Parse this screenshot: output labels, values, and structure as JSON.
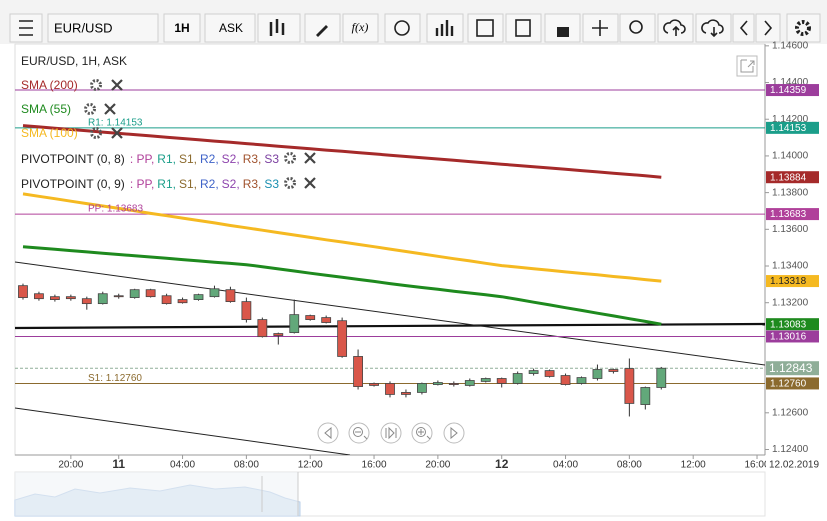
{
  "toolbar": {
    "symbol": "EUR/USD",
    "timeframe": "1H",
    "price_type": "ASK",
    "function_button": "f(x)"
  },
  "chart_data": {
    "type": "candlestick",
    "title": "EUR/USD, 1H, ASK",
    "categories": [
      null,
      null,
      null,
      "20:00",
      null,
      null,
      "11",
      null,
      null,
      null,
      "04:00",
      null,
      null,
      null,
      "08:00",
      null,
      null,
      null,
      "12:00",
      null,
      null,
      null,
      "16:00",
      null,
      null,
      null,
      "20:00",
      null,
      null,
      null,
      "12",
      null,
      null,
      null,
      "04:00",
      null,
      null,
      null,
      "08:00",
      null,
      null,
      null,
      "12:00",
      null,
      null,
      null,
      "16:00"
    ],
    "open": [
      1.13293,
      1.13249,
      1.13233,
      1.13233,
      1.13222,
      1.13195,
      1.13238,
      1.13228,
      1.13271,
      1.13238,
      1.13217,
      1.13217,
      1.13233,
      1.13271,
      1.13206,
      1.13108,
      1.13032,
      1.13037,
      1.1313,
      1.13119,
      1.13102,
      1.12907,
      1.1276,
      1.1276,
      1.12711,
      1.12711,
      1.12754,
      1.1276,
      1.12749,
      1.12771,
      1.12787,
      1.1276,
      1.12814,
      1.1283,
      1.12803,
      1.1276,
      1.12787,
      1.12836,
      1.12841,
      1.12645,
      1.12738,
      null,
      null,
      null,
      null,
      null,
      null
    ],
    "high": [
      1.13304,
      1.1326,
      1.13244,
      1.13244,
      1.13233,
      1.1326,
      1.13249,
      1.13276,
      1.13276,
      1.13249,
      1.13228,
      1.13249,
      1.13293,
      1.13287,
      1.13228,
      1.13119,
      1.13037,
      1.13217,
      1.13135,
      1.1313,
      1.13119,
      1.12945,
      1.12765,
      1.12771,
      1.12727,
      1.12765,
      1.12776,
      1.12771,
      1.12787,
      1.12792,
      1.12792,
      1.12825,
      1.12841,
      1.12836,
      1.12814,
      1.12798,
      1.12863,
      1.12841,
      1.12896,
      1.12743,
      1.1285,
      null,
      null,
      null,
      null,
      null,
      null
    ],
    "low": [
      1.13217,
      1.13211,
      1.13206,
      1.13211,
      1.13162,
      1.1319,
      1.13222,
      1.13222,
      1.13228,
      1.1319,
      1.13195,
      1.13211,
      1.13228,
      1.132,
      1.13092,
      1.1301,
      1.12972,
      1.13032,
      1.13102,
      1.13087,
      1.129,
      1.12727,
      1.12743,
      1.12684,
      1.12684,
      1.127,
      1.12749,
      1.12743,
      1.12743,
      1.12765,
      1.12738,
      1.12754,
      1.12803,
      1.12792,
      1.12749,
      1.12754,
      1.12776,
      1.12814,
      1.1258,
      1.12618,
      1.12727,
      null,
      null,
      null,
      null,
      null,
      null
    ],
    "close": [
      1.13228,
      1.13222,
      1.13217,
      1.13222,
      1.13195,
      1.13249,
      1.13233,
      1.13271,
      1.13233,
      1.13195,
      1.132,
      1.13244,
      1.13276,
      1.13206,
      1.13108,
      1.13015,
      1.13021,
      1.13135,
      1.13108,
      1.13092,
      1.12907,
      1.12743,
      1.12749,
      1.127,
      1.127,
      1.1276,
      1.12765,
      1.12754,
      1.12776,
      1.12787,
      1.1276,
      1.12814,
      1.1283,
      1.12798,
      1.12754,
      1.12792,
      1.12836,
      1.12825,
      1.12651,
      1.12738,
      1.12843,
      null,
      null,
      null,
      null,
      null,
      null
    ],
    "up_color": "#62a87a",
    "down_color": "#d9574a",
    "series": [
      {
        "name": "SMA (200)",
        "color": "#a52a2a",
        "tag": "1.13884",
        "values": [
          1.14165,
          1.14158,
          1.14151,
          1.14144,
          1.14137,
          1.1413,
          1.14123,
          1.14116,
          1.14109,
          1.14102,
          1.14095,
          1.14088,
          1.14081,
          1.14074,
          1.14067,
          1.1406,
          1.14053,
          1.14046,
          1.14039,
          1.14032,
          1.14025,
          1.14018,
          1.14011,
          1.14004,
          1.13997,
          1.1399,
          1.13983,
          1.13976,
          1.13969,
          1.13962,
          1.13955,
          1.13948,
          1.13941,
          1.13934,
          1.13927,
          1.1392,
          1.13913,
          1.13906,
          1.13899,
          1.13892,
          1.13884,
          null,
          null,
          null,
          null,
          null,
          null
        ]
      },
      {
        "name": "SMA (55)",
        "color": "#1e8a1e",
        "tag": "1.13083",
        "values": [
          1.13505,
          1.13498,
          1.13491,
          1.13484,
          1.13477,
          1.1347,
          1.13463,
          1.13456,
          1.13449,
          1.13442,
          1.13435,
          1.13428,
          1.13421,
          1.13414,
          1.13407,
          1.13396,
          1.13384,
          1.13373,
          1.13361,
          1.1335,
          1.13339,
          1.13327,
          1.13316,
          1.13304,
          1.13293,
          1.13283,
          1.13273,
          1.13263,
          1.13253,
          1.13243,
          1.13233,
          1.13218,
          1.13203,
          1.13188,
          1.13173,
          1.13158,
          1.13143,
          1.13128,
          1.13113,
          1.13098,
          1.13083,
          null,
          null,
          null,
          null,
          null,
          null
        ]
      },
      {
        "name": "SMA (100)",
        "color": "#f5b921",
        "tag": "1.13318",
        "values": [
          1.13793,
          1.1378,
          1.13767,
          1.13753,
          1.1374,
          1.13727,
          1.13714,
          1.13701,
          1.13687,
          1.13674,
          1.13661,
          1.13648,
          1.13635,
          1.13621,
          1.13608,
          1.13595,
          1.13582,
          1.13569,
          1.13556,
          1.13543,
          1.13531,
          1.13518,
          1.13505,
          1.13492,
          1.13479,
          1.13466,
          1.13453,
          1.1344,
          1.13428,
          1.13415,
          1.13402,
          1.13394,
          1.13385,
          1.13377,
          1.13368,
          1.1336,
          1.13352,
          1.13343,
          1.13335,
          1.13326,
          1.13318,
          null,
          null,
          null,
          null,
          null,
          null
        ]
      }
    ],
    "levels": [
      {
        "value": 1.14359,
        "color": "#9c3d9c",
        "tag": "1.14359"
      },
      {
        "value": 1.14153,
        "color": "#1b9e8a",
        "tag": "1.14153",
        "label": "R1: 1.14153"
      },
      {
        "value": 1.13683,
        "color": "#b0409a",
        "tag": "1.13683",
        "label": "PP: 1.13683"
      },
      {
        "value": 1.13016,
        "color": "#9c3d9c",
        "tag": "1.13016"
      },
      {
        "value": 1.1276,
        "color": "#8b6a2e",
        "tag": "1.12760",
        "label": "S1: 1.12760"
      }
    ],
    "last_price": {
      "value": 1.12843,
      "label": "1.12843",
      "color": "#8fae98"
    },
    "pivot_legend": [
      {
        "name": "PIVOTPOINT (0, 8)",
        "items": [
          {
            "text": ": PP,",
            "color": "#b0409a"
          },
          {
            "text": "R1,",
            "color": "#1b9e8a"
          },
          {
            "text": "S1,",
            "color": "#8b6a2e"
          },
          {
            "text": "R2,",
            "color": "#3f63c8"
          },
          {
            "text": "S2,",
            "color": "#8e44ad"
          },
          {
            "text": "R3,",
            "color": "#a0522d"
          },
          {
            "text": "S3",
            "color": "#7b3fa0"
          }
        ]
      },
      {
        "name": "PIVOTPOINT (0, 9)",
        "items": [
          {
            "text": ": PP,",
            "color": "#b0409a"
          },
          {
            "text": "R1,",
            "color": "#1b9e8a"
          },
          {
            "text": "S1,",
            "color": "#8b6a2e"
          },
          {
            "text": "R2,",
            "color": "#3f63c8"
          },
          {
            "text": "S2,",
            "color": "#8e44ad"
          },
          {
            "text": "R3,",
            "color": "#a0522d"
          },
          {
            "text": "S3",
            "color": "#1a8fb0"
          }
        ]
      }
    ],
    "date_label": "12.02.2019",
    "ylim": [
      1.1237,
      1.1461
    ],
    "yticks": [
      {
        "value": 1.124,
        "label": "1.12400"
      },
      {
        "value": 1.126,
        "label": "1.12600"
      },
      {
        "value": 1.132,
        "label": "1.13200"
      },
      {
        "value": 1.134,
        "label": "1.13400"
      },
      {
        "value": 1.136,
        "label": "1.13600"
      },
      {
        "value": 1.138,
        "label": "1.13800"
      },
      {
        "value": 1.14,
        "label": "1.14000"
      },
      {
        "value": 1.142,
        "label": "1.14200"
      },
      {
        "value": 1.144,
        "label": "1.14400"
      },
      {
        "value": 1.146,
        "label": "1.14600"
      }
    ],
    "grid": false
  }
}
